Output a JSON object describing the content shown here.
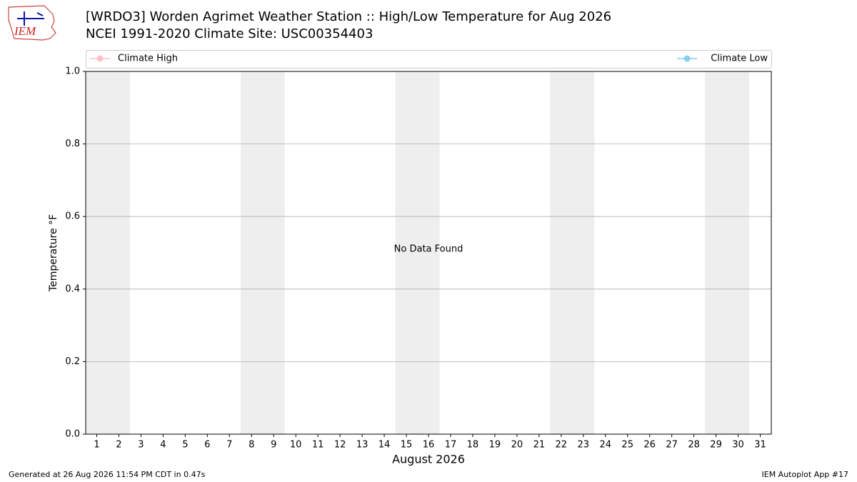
{
  "logo": "IEM",
  "chart_data": {
    "type": "line",
    "title": "[WRDO3] Worden Agrimet Weather Station :: High/Low Temperature for Aug 2026",
    "subtitle": "NCEI 1991-2020 Climate Site: USC00354403",
    "ylabel": "Temperature °F",
    "xlabel": "August 2026",
    "annotation": "No Data Found",
    "series": [
      {
        "name": "Climate High",
        "color": "pink",
        "x": [],
        "values": []
      },
      {
        "name": "Climate Low",
        "color": "skyblue",
        "x": [],
        "values": []
      }
    ],
    "xlim": [
      0.5,
      31.5
    ],
    "xticks": [
      1,
      2,
      3,
      4,
      5,
      6,
      7,
      8,
      9,
      10,
      11,
      12,
      13,
      14,
      15,
      16,
      17,
      18,
      19,
      20,
      21,
      22,
      23,
      24,
      25,
      26,
      27,
      28,
      29,
      30,
      31
    ],
    "ylim": [
      0,
      1
    ],
    "yticks": [
      {
        "value": 0,
        "label": "0.0"
      },
      {
        "value": 0.2,
        "label": "0.2"
      },
      {
        "value": 0.4,
        "label": "0.4"
      },
      {
        "value": 0.6,
        "label": "0.6"
      },
      {
        "value": 0.8,
        "label": "0.8"
      },
      {
        "value": 1,
        "label": "1.0"
      }
    ],
    "weekend_spans": [
      [
        0.5,
        2.5
      ],
      [
        7.5,
        9.5
      ],
      [
        14.5,
        16.5
      ],
      [
        21.5,
        23.5
      ],
      [
        28.5,
        30.5
      ]
    ],
    "span_color": "#eeeeee",
    "grid": true,
    "legend": "top"
  },
  "footer": {
    "left": "Generated at 26 Aug 2026 11:54 PM CDT in 0.47s",
    "right": "IEM Autoplot App #17"
  }
}
